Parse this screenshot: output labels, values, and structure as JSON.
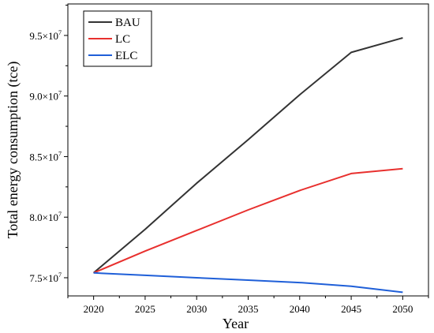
{
  "chart_data": {
    "type": "line",
    "xlabel": "Year",
    "ylabel": "Total energy consumption (tce)",
    "x": [
      2020,
      2025,
      2030,
      2035,
      2040,
      2045,
      2050
    ],
    "xlim": [
      2017.5,
      2052.5
    ],
    "ylim": [
      73500000,
      97600000
    ],
    "yticks": [
      75000000,
      80000000,
      85000000,
      90000000,
      95000000
    ],
    "ytick_labels": [
      {
        "mantissa": "7.5",
        "times": "×10",
        "exp": "7"
      },
      {
        "mantissa": "8.0",
        "times": "×10",
        "exp": "7"
      },
      {
        "mantissa": "8.5",
        "times": "×10",
        "exp": "7"
      },
      {
        "mantissa": "9.0",
        "times": "×10",
        "exp": "7"
      },
      {
        "mantissa": "9.5",
        "times": "×10",
        "exp": "7"
      }
    ],
    "legend_position": "top-left",
    "grid": false,
    "series": [
      {
        "name": "BAU",
        "color": "#333333",
        "values": [
          75400000,
          79000000,
          82800000,
          86400000,
          90100000,
          93600000,
          94800000
        ]
      },
      {
        "name": "LC",
        "color": "#e8302e",
        "values": [
          75400000,
          77200000,
          78900000,
          80600000,
          82200000,
          83600000,
          84000000
        ]
      },
      {
        "name": "ELC",
        "color": "#1f5fd8",
        "values": [
          75400000,
          75200000,
          75000000,
          74800000,
          74600000,
          74300000,
          73800000
        ]
      }
    ]
  }
}
